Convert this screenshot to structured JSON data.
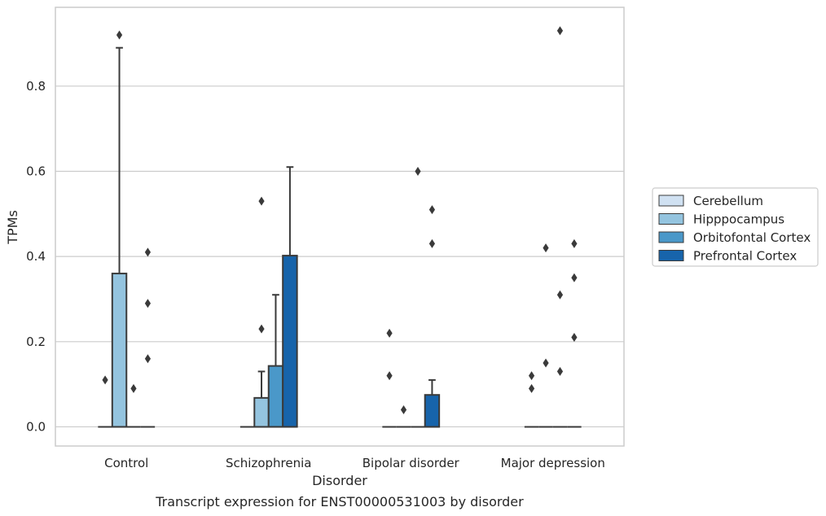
{
  "chart_data": {
    "type": "box",
    "title": "",
    "caption": "Transcript expression for ENST00000531003 by disorder",
    "xlabel": "Disorder",
    "ylabel": "TPMs",
    "ylim": [
      -0.045,
      0.985
    ],
    "yticks": [
      0.0,
      0.2,
      0.4,
      0.6,
      0.8
    ],
    "ytick_labels": [
      "0.0",
      "0.2",
      "0.4",
      "0.6",
      "0.8"
    ],
    "grid": "horizontal",
    "legend_position": "right",
    "categories": [
      "Control",
      "Schizophrenia",
      "Bipolar disorder",
      "Major depression"
    ],
    "series": [
      {
        "name": "Cerebellum",
        "color": "#d0e1f2",
        "boxes": [
          {
            "q1": 0,
            "q3": 0,
            "median": 0,
            "whisker_low": 0,
            "whisker_high": 0,
            "outliers": [
              0.11
            ]
          },
          {
            "q1": 0,
            "q3": 0,
            "median": 0,
            "whisker_low": 0,
            "whisker_high": 0,
            "outliers": []
          },
          {
            "q1": 0,
            "q3": 0,
            "median": 0,
            "whisker_low": 0,
            "whisker_high": 0,
            "outliers": [
              0.22,
              0.12
            ]
          },
          {
            "q1": 0,
            "q3": 0,
            "median": 0,
            "whisker_low": 0,
            "whisker_high": 0,
            "outliers": [
              0.12,
              0.09
            ]
          }
        ]
      },
      {
        "name": "Hipppocampus",
        "color": "#94c4df",
        "boxes": [
          {
            "q1": 0,
            "q3": 0.36,
            "median": 0,
            "whisker_low": 0,
            "whisker_high": 0.89,
            "outliers": [
              0.92
            ]
          },
          {
            "q1": 0,
            "q3": 0.068,
            "median": 0,
            "whisker_low": 0,
            "whisker_high": 0.13,
            "outliers": [
              0.53,
              0.23
            ]
          },
          {
            "q1": 0,
            "q3": 0,
            "median": 0,
            "whisker_low": 0,
            "whisker_high": 0,
            "outliers": [
              0.04
            ]
          },
          {
            "q1": 0,
            "q3": 0,
            "median": 0,
            "whisker_low": 0,
            "whisker_high": 0,
            "outliers": [
              0.42,
              0.15
            ]
          }
        ]
      },
      {
        "name": "Orbitofontal Cortex",
        "color": "#4a98c9",
        "boxes": [
          {
            "q1": 0,
            "q3": 0,
            "median": 0,
            "whisker_low": 0,
            "whisker_high": 0,
            "outliers": [
              0.09
            ]
          },
          {
            "q1": 0,
            "q3": 0.143,
            "median": 0,
            "whisker_low": 0,
            "whisker_high": 0.31,
            "outliers": []
          },
          {
            "q1": 0,
            "q3": 0,
            "median": 0,
            "whisker_low": 0,
            "whisker_high": 0,
            "outliers": [
              0.6
            ]
          },
          {
            "q1": 0,
            "q3": 0,
            "median": 0,
            "whisker_low": 0,
            "whisker_high": 0,
            "outliers": [
              0.93,
              0.31,
              0.13
            ]
          }
        ]
      },
      {
        "name": "Prefrontal Cortex",
        "color": "#1764ab",
        "boxes": [
          {
            "q1": 0,
            "q3": 0,
            "median": 0,
            "whisker_low": 0,
            "whisker_high": 0,
            "outliers": [
              0.41,
              0.29,
              0.16
            ]
          },
          {
            "q1": 0,
            "q3": 0.402,
            "median": 0,
            "whisker_low": 0,
            "whisker_high": 0.61,
            "outliers": []
          },
          {
            "q1": 0,
            "q3": 0.075,
            "median": 0,
            "whisker_low": 0,
            "whisker_high": 0.11,
            "outliers": [
              0.51,
              0.43
            ]
          },
          {
            "q1": 0,
            "q3": 0,
            "median": 0,
            "whisker_low": 0,
            "whisker_high": 0,
            "outliers": [
              0.43,
              0.35,
              0.21
            ]
          }
        ]
      }
    ]
  }
}
